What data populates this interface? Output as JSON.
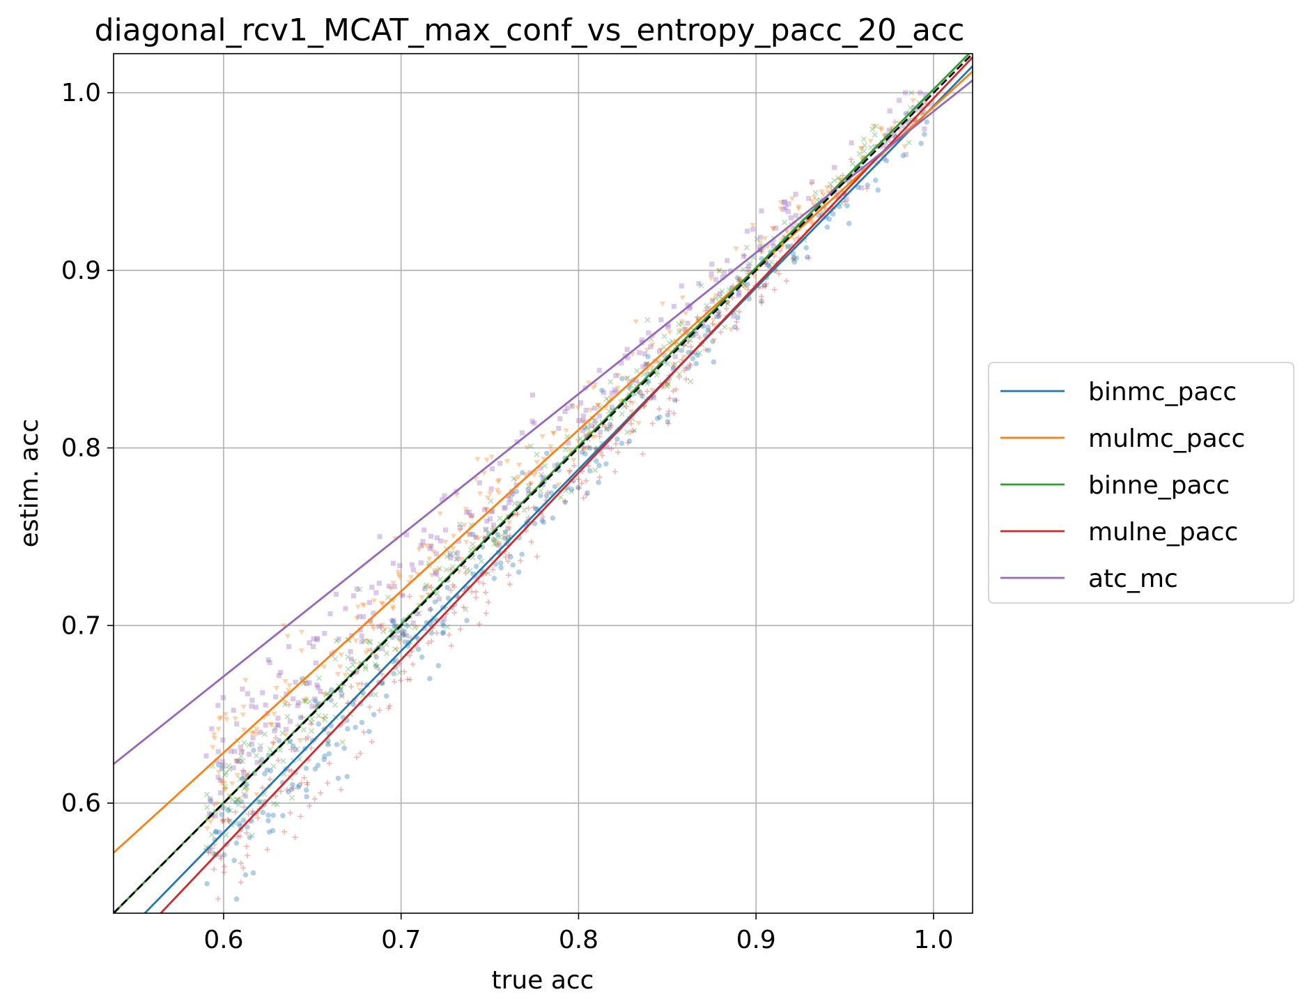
{
  "chart_data": {
    "type": "scatter",
    "title": "diagonal_rcv1_MCAT_max_conf_vs_entropy_pacc_20_acc",
    "xlabel": "true acc",
    "ylabel": "estim. acc",
    "xlim": [
      0.538,
      1.022
    ],
    "ylim": [
      0.538,
      1.022
    ],
    "xticks": [
      0.6,
      0.7,
      0.8,
      0.9,
      1.0
    ],
    "xtick_labels": [
      "0.6",
      "0.7",
      "0.8",
      "0.9",
      "1.0"
    ],
    "yticks": [
      0.6,
      0.7,
      0.8,
      0.9,
      1.0
    ],
    "ytick_labels": [
      "0.6",
      "0.7",
      "0.8",
      "0.9",
      "1.0"
    ],
    "grid": true,
    "legend_position": "outside-right",
    "diagonal": {
      "x": [
        0.538,
        1.022
      ],
      "y": [
        0.538,
        1.022
      ],
      "color": "#000000",
      "dash": "dashed"
    },
    "series": [
      {
        "name": "binmc_pacc",
        "color": "#1f77b4",
        "marker": "circle",
        "fit": {
          "x": [
            0.538,
            1.022
          ],
          "y": [
            0.52,
            1.015
          ]
        },
        "points_summary": {
          "x_range": [
            0.59,
            1.0
          ],
          "offset": -0.012,
          "spread": 0.018,
          "count": 320
        }
      },
      {
        "name": "mulmc_pacc",
        "color": "#ff7f0e",
        "marker": "triangle-down",
        "fit": {
          "x": [
            0.538,
            1.022
          ],
          "y": [
            0.572,
            1.012
          ]
        },
        "points_summary": {
          "x_range": [
            0.59,
            1.0
          ],
          "offset": 0.02,
          "spread": 0.02,
          "count": 320
        }
      },
      {
        "name": "binne_pacc",
        "color": "#2ca02c",
        "marker": "x",
        "fit": {
          "x": [
            0.538,
            1.022
          ],
          "y": [
            0.538,
            1.024
          ]
        },
        "points_summary": {
          "x_range": [
            0.59,
            1.0
          ],
          "offset": 0.0,
          "spread": 0.018,
          "count": 320
        }
      },
      {
        "name": "mulne_pacc",
        "color": "#d62728",
        "marker": "plus",
        "fit": {
          "x": [
            0.538,
            1.022
          ],
          "y": [
            0.51,
            1.02
          ]
        },
        "points_summary": {
          "x_range": [
            0.59,
            1.0
          ],
          "offset": -0.012,
          "spread": 0.018,
          "count": 320
        }
      },
      {
        "name": "atc_mc",
        "color": "#9467bd",
        "marker": "square",
        "fit": {
          "x": [
            0.538,
            1.022
          ],
          "y": [
            0.622,
            1.007
          ]
        },
        "points_summary": {
          "x_range": [
            0.59,
            1.0
          ],
          "offset": 0.03,
          "spread": 0.02,
          "count": 320
        }
      }
    ]
  }
}
